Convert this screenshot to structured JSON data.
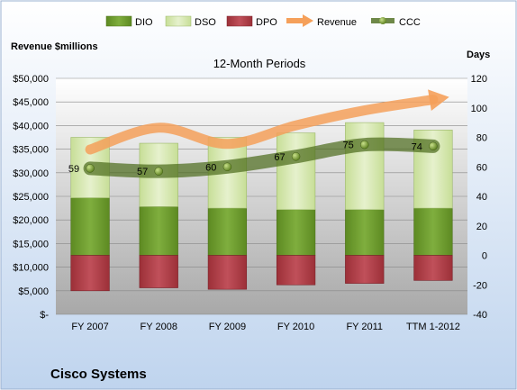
{
  "chart_data": {
    "type": "bar",
    "title": "12-Month Periods",
    "company": "Cisco Systems",
    "left_axis_label": "Revenue $millions",
    "right_axis_label": "Days",
    "categories": [
      "FY 2007",
      "FY 2008",
      "FY 2009",
      "FY 2010",
      "FY 2011",
      "TTM 1-2012"
    ],
    "left_ticks": [
      "$-",
      "$5,000",
      "$10,000",
      "$15,000",
      "$20,000",
      "$25,000",
      "$30,000",
      "$35,000",
      "$40,000",
      "$45,000",
      "$50,000"
    ],
    "right_ticks": [
      "-40",
      "-20",
      "0",
      "20",
      "40",
      "60",
      "80",
      "100",
      "120"
    ],
    "left_ylim": [
      0,
      50000
    ],
    "right_ylim": [
      -40,
      120
    ],
    "legend": [
      "DIO",
      "DSO",
      "DPO",
      "Revenue",
      "CCC"
    ],
    "series": [
      {
        "name": "DIO",
        "axis": "right",
        "kind": "bar",
        "values": [
          39,
          33,
          32,
          31,
          31,
          32
        ]
      },
      {
        "name": "DSO",
        "axis": "right",
        "kind": "bar",
        "values": [
          41,
          43,
          48,
          52,
          59,
          53
        ]
      },
      {
        "name": "DPO",
        "axis": "right",
        "kind": "bar",
        "values": [
          -24,
          -22,
          -23,
          -20,
          -19,
          -17
        ]
      },
      {
        "name": "Revenue",
        "axis": "left",
        "kind": "arrow-line",
        "values": [
          34922,
          39540,
          36117,
          40040,
          43218,
          45500
        ]
      },
      {
        "name": "CCC",
        "axis": "right",
        "kind": "line",
        "values": [
          59,
          57,
          60,
          67,
          75,
          74
        ]
      }
    ],
    "ccc_labels": [
      "59",
      "57",
      "60",
      "67",
      "75",
      "74"
    ],
    "colors": {
      "dio": "#6e9b2e",
      "dso": "#d6e8b0",
      "dpo": "#b0404a",
      "revenue": "#f5a05a",
      "ccc": "#4a6a1a",
      "plot_top": "#ffffff",
      "plot_bottom": "#a8a8a8",
      "frame": "#9ab0d0"
    },
    "grid": true,
    "legend_position": "top"
  }
}
